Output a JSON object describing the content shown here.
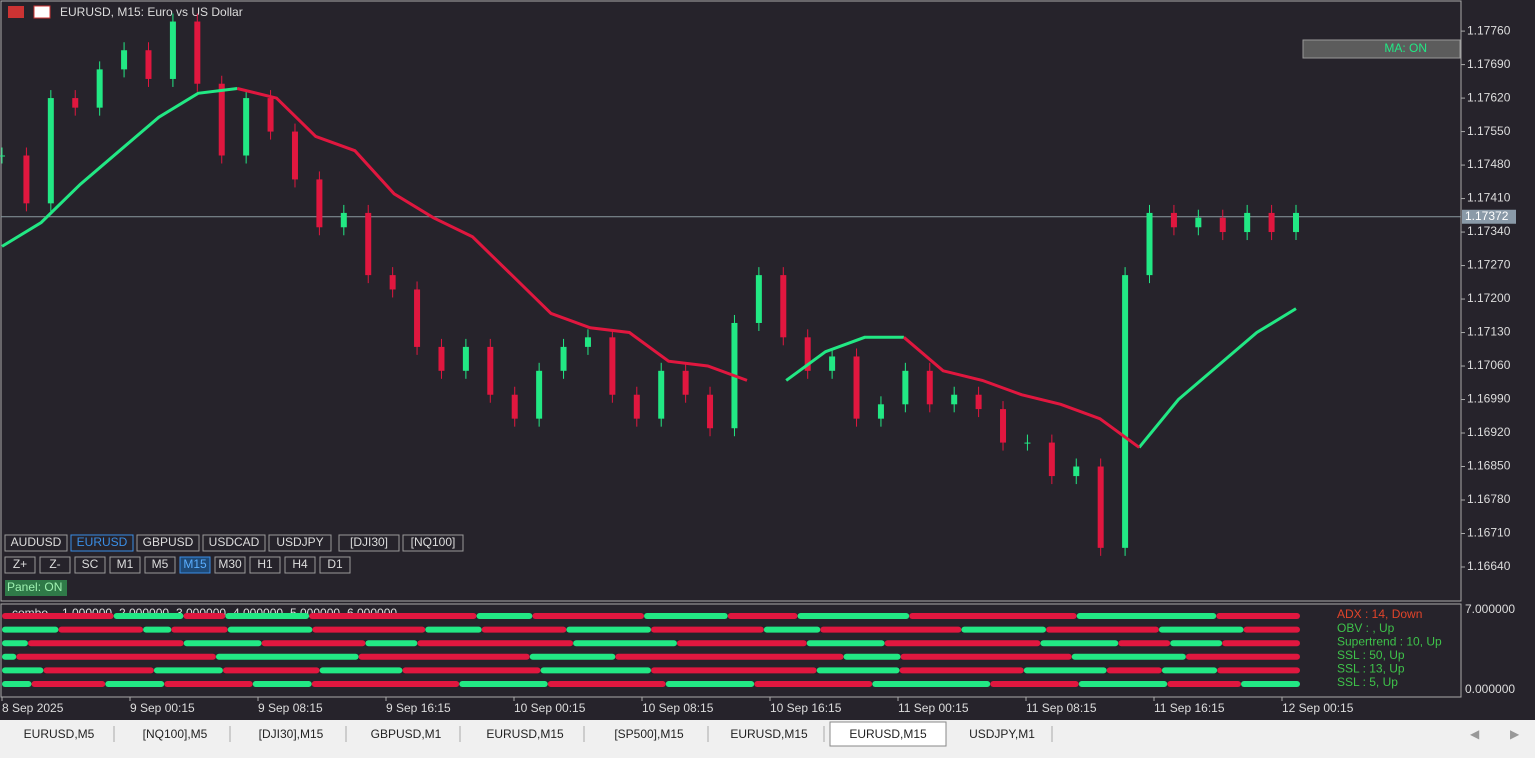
{
  "header": {
    "title": "EURUSD, M15:  Euro vs US Dollar"
  },
  "chart": {
    "price_ticks": [
      {
        "value": 1.1776,
        "label": "1.17760"
      },
      {
        "value": 1.1769,
        "label": "1.17690"
      },
      {
        "value": 1.1762,
        "label": "1.17620"
      },
      {
        "value": 1.1755,
        "label": "1.17550"
      },
      {
        "value": 1.1748,
        "label": "1.17480"
      },
      {
        "value": 1.1741,
        "label": "1.17410"
      },
      {
        "value": 1.1734,
        "label": "1.17340"
      },
      {
        "value": 1.1727,
        "label": "1.17270"
      },
      {
        "value": 1.172,
        "label": "1.17200"
      },
      {
        "value": 1.1713,
        "label": "1.17130"
      },
      {
        "value": 1.1706,
        "label": "1.17060"
      },
      {
        "value": 1.1699,
        "label": "1.16990"
      },
      {
        "value": 1.1692,
        "label": "1.16920"
      },
      {
        "value": 1.1685,
        "label": "1.16850"
      },
      {
        "value": 1.1678,
        "label": "1.16780"
      },
      {
        "value": 1.1671,
        "label": "1.16710"
      },
      {
        "value": 1.1664,
        "label": "1.16640"
      }
    ],
    "ylim": [
      1.16571,
      1.17825
    ],
    "current_price": {
      "value": 1.17372,
      "label": "1.17372"
    },
    "close": [
      1.175,
      1.174,
      1.1762,
      1.176,
      1.1768,
      1.1772,
      1.1766,
      1.1778,
      1.1765,
      1.175,
      1.1762,
      1.1755,
      1.1745,
      1.1735,
      1.1738,
      1.1725,
      1.1722,
      1.171,
      1.1705,
      1.171,
      1.17,
      1.1695,
      1.1705,
      1.171,
      1.1712,
      1.17,
      1.1695,
      1.1705,
      1.17,
      1.1693,
      1.1715,
      1.1725,
      1.1712,
      1.1705,
      1.1708,
      1.1695,
      1.1698,
      1.1705,
      1.1698,
      1.17,
      1.1697,
      1.169,
      1.169,
      1.1683,
      1.1685,
      1.1668,
      1.1725,
      1.1738,
      1.1735,
      1.1737,
      1.1734,
      1.1738,
      1.1734,
      1.1738
    ],
    "ma_up": [
      1.1731,
      1.1736,
      1.1744,
      1.1751,
      1.1758,
      1.1763,
      1.1764,
      null,
      null,
      null,
      null,
      null,
      null,
      null,
      null,
      null,
      null,
      null,
      null,
      null,
      1.1703,
      1.1709,
      1.1712,
      1.1712,
      null,
      null,
      null,
      null,
      null,
      1.1689,
      1.1699,
      1.1706,
      1.1713,
      1.1718
    ],
    "ma_down": [
      null,
      null,
      null,
      null,
      null,
      null,
      1.1764,
      1.1762,
      1.1754,
      1.1751,
      1.1742,
      1.1737,
      1.1733,
      1.1725,
      1.1717,
      1.1714,
      1.1713,
      1.1707,
      1.1706,
      1.1703,
      null,
      null,
      null,
      1.1712,
      1.1705,
      1.1703,
      1.17,
      1.1698,
      1.1695,
      1.1689,
      null,
      null,
      null,
      null
    ],
    "time_labels": [
      "8 Sep 2025",
      "9 Sep 00:15",
      "9 Sep 08:15",
      "9 Sep 16:15",
      "10 Sep 00:15",
      "10 Sep 08:15",
      "10 Sep 16:15",
      "11 Sep 00:15",
      "11 Sep 08:15",
      "11 Sep 16:15",
      "12 Sep 00:15"
    ],
    "ma_button": "MA: ON"
  },
  "symbols": [
    "AUDUSD",
    "EURUSD",
    "GBPUSD",
    "USDCAD",
    "USDJPY",
    "[DJI30]",
    "[NQ100]"
  ],
  "timeframes": [
    "Z+",
    "Z-",
    "SC",
    "M1",
    "M5",
    "M15",
    "M30",
    "H1",
    "H4",
    "D1"
  ],
  "panel_button": "Panel: ON",
  "indicator": {
    "name": "combo",
    "levels": [
      "1.000000",
      "2.000000",
      "3.000000",
      "4.000000",
      "5.000000",
      "6.000000"
    ],
    "scale": [
      "7.000000",
      "0.000000"
    ],
    "status": [
      "ADX : 14, Down",
      "OBV : , Up",
      "Supertrend : 10, Up",
      "SSL : 50, Up",
      "SSL : 13, Up",
      "SSL : 5, Up"
    ],
    "rows": [
      [
        0,
        40,
        25,
        15,
        30,
        60,
        20,
        40,
        30,
        25,
        40,
        60,
        50,
        30
      ],
      [
        20,
        30,
        10,
        20,
        30,
        40,
        20,
        30,
        30,
        40,
        20,
        50,
        30,
        40,
        30,
        20
      ],
      [
        10,
        60,
        30,
        40,
        20,
        60,
        40,
        50,
        30,
        60,
        30,
        20,
        20,
        30
      ],
      [
        5,
        70,
        50,
        60,
        30,
        80,
        20,
        60,
        40,
        40
      ],
      [
        15,
        40,
        25,
        35,
        30,
        50,
        40,
        60,
        30,
        45,
        30,
        20,
        20,
        30
      ],
      [
        10,
        25,
        20,
        30,
        20,
        50,
        30,
        40,
        30,
        40,
        40,
        30,
        30,
        25,
        20
      ]
    ]
  },
  "tabs": [
    "EURUSD,M5",
    "[NQ100],M5",
    "[DJI30],M15",
    "GBPUSD,M1",
    "EURUSD,M15",
    "[SP500],M15",
    "EURUSD,M15",
    "EURUSD,M15",
    "USDJPY,M1"
  ],
  "active_tab": 7,
  "active_symbol": 1,
  "active_timeframe": 5
}
